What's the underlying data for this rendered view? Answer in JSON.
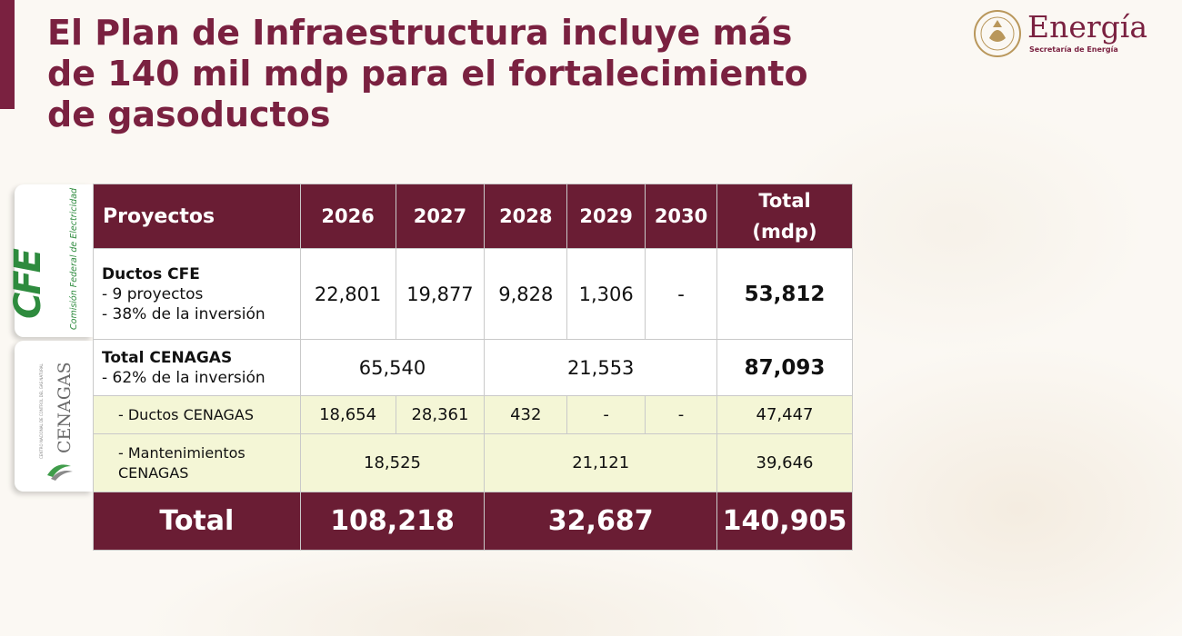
{
  "title": "El Plan de Infraestructura incluye más de 140 mil mdp para el fortalecimiento de gasoductos",
  "logo": {
    "name": "Energía",
    "subtitle": "Secretaría de Energía"
  },
  "side_logos": {
    "cfe_mark": "CFE",
    "cfe_text": "Comisión Federal de Electricidad",
    "cenagas_mark": "CENAGAS",
    "cenagas_small": "CENTRO NACIONAL DE CONTROL DEL GAS NATURAL"
  },
  "table": {
    "headers": {
      "projects": "Proyectos",
      "y2026": "2026",
      "y2027": "2027",
      "y2028": "2028",
      "y2029": "2029",
      "y2030": "2030",
      "total_1": "Total",
      "total_2": "(mdp)"
    },
    "cfe": {
      "label": "Ductos CFE",
      "line1": "-  9 proyectos",
      "line2": "-  38% de la inversión",
      "y2026": "22,801",
      "y2027": "19,877",
      "y2028": "9,828",
      "y2029": "1,306",
      "y2030": "-",
      "total": "53,812"
    },
    "cenagas": {
      "label": "Total CENAGAS",
      "line1": "-  62% de la inversión",
      "y2026_2027": "65,540",
      "y2028_2030": "21,553",
      "total": "87,093"
    },
    "ductos_cenagas": {
      "label": "-  Ductos CENAGAS",
      "y2026": "18,654",
      "y2027": "28,361",
      "y2028": "432",
      "y2029": "-",
      "y2030": "-",
      "total": "47,447"
    },
    "mant_cenagas": {
      "label1": "-  Mantenimientos",
      "label2": "CENAGAS",
      "y2026_2027": "18,525",
      "y2028_2030": "21,121",
      "total": "39,646"
    },
    "total": {
      "label": "Total",
      "y2026_2027": "108,218",
      "y2028_2030": "32,687",
      "grand": "140,905"
    }
  }
}
